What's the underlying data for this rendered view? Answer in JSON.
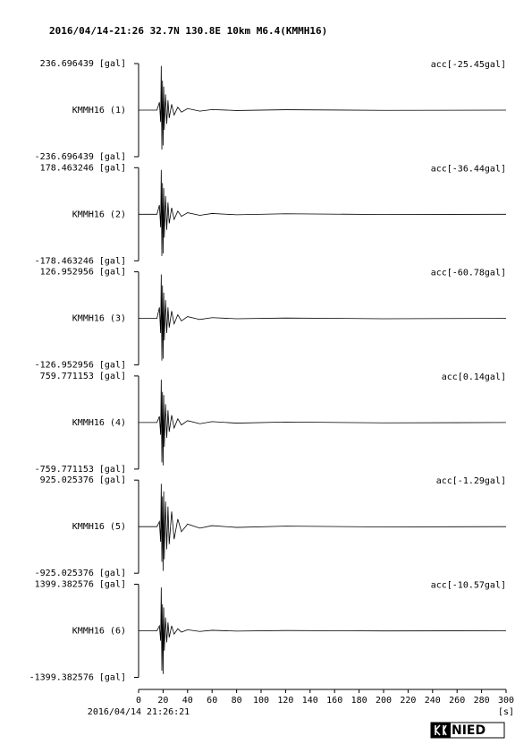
{
  "chart_data": {
    "type": "line",
    "title": "2016/04/14-21:26 32.7N 130.8E 10km M6.4(KMMH16)",
    "x": [
      0,
      15,
      17,
      18,
      18.5,
      19,
      19.5,
      20,
      20.5,
      21,
      22,
      23,
      24,
      25,
      27,
      29,
      32,
      35,
      40,
      50,
      60,
      80,
      120,
      200,
      300
    ],
    "xlim": [
      0,
      300
    ],
    "xticks": [
      0,
      20,
      40,
      60,
      80,
      100,
      120,
      140,
      160,
      180,
      200,
      220,
      240,
      260,
      280,
      300
    ],
    "xlabel": "[s]",
    "start_time": "2016/04/14 21:26:21",
    "logo": "NIED",
    "panels": [
      {
        "name": "KMMH16 (1)",
        "annotation": "acc[-25.45gal]",
        "color": "#000000",
        "ylim": [
          -236.696439,
          236.696439
        ],
        "yticks": [
          {
            "value": -236.696439,
            "label": "-236.696439 [gal]"
          },
          {
            "value": 236.696439,
            "label": "236.696439 [gal]"
          }
        ],
        "values": [
          0,
          0,
          40,
          -60,
          225,
          -200,
          150,
          -180,
          120,
          -100,
          80,
          -70,
          50,
          -40,
          30,
          -25,
          15,
          -10,
          8,
          -5,
          3,
          -2,
          2,
          -1,
          0
        ]
      },
      {
        "name": "KMMH16 (2)",
        "annotation": "acc[-36.44gal]",
        "color": "#000000",
        "ylim": [
          -178.463246,
          178.463246
        ],
        "yticks": [
          {
            "value": -178.463246,
            "label": "-178.463246 [gal]"
          },
          {
            "value": 178.463246,
            "label": "178.463246 [gal]"
          }
        ],
        "values": [
          0,
          0,
          35,
          -50,
          170,
          -160,
          120,
          -150,
          100,
          -90,
          70,
          -60,
          45,
          -35,
          25,
          -20,
          12,
          -8,
          6,
          -4,
          3,
          -2,
          2,
          -1,
          0
        ]
      },
      {
        "name": "KMMH16 (3)",
        "annotation": "acc[-60.78gal]",
        "color": "#000000",
        "ylim": [
          -126.952956,
          126.952956
        ],
        "yticks": [
          {
            "value": -126.952956,
            "label": "-126.952956 [gal]"
          },
          {
            "value": 126.952956,
            "label": "126.952956 [gal]"
          }
        ],
        "values": [
          0,
          0,
          30,
          -40,
          120,
          -115,
          90,
          -110,
          70,
          -60,
          50,
          -40,
          30,
          -25,
          20,
          -15,
          10,
          -7,
          5,
          -3,
          2,
          -1,
          1,
          -1,
          0
        ]
      },
      {
        "name": "KMMH16 (4)",
        "annotation": "acc[0.14gal]",
        "color": "#000000",
        "ylim": [
          -759.771153,
          759.771153
        ],
        "yticks": [
          {
            "value": -759.771153,
            "label": "-759.771153 [gal]"
          },
          {
            "value": 759.771153,
            "label": "759.771153 [gal]"
          }
        ],
        "values": [
          0,
          0,
          100,
          -200,
          700,
          -650,
          500,
          -700,
          450,
          -400,
          300,
          -250,
          200,
          -150,
          120,
          -90,
          60,
          -40,
          30,
          -20,
          15,
          -10,
          8,
          -5,
          0
        ]
      },
      {
        "name": "KMMH16 (5)",
        "annotation": "acc[-1.29gal]",
        "color": "#000000",
        "ylim": [
          -925.025376,
          925.025376
        ],
        "yticks": [
          {
            "value": -925.025376,
            "label": "-925.025376 [gal]"
          },
          {
            "value": 925.025376,
            "label": "925.025376 [gal]"
          }
        ],
        "values": [
          0,
          0,
          100,
          -300,
          850,
          -700,
          600,
          -880,
          700,
          -650,
          500,
          -450,
          400,
          -350,
          300,
          -250,
          150,
          -100,
          50,
          -30,
          20,
          -15,
          10,
          -5,
          0
        ]
      },
      {
        "name": "KMMH16 (6)",
        "annotation": "acc[-10.57gal]",
        "color": "#000000",
        "ylim": [
          -1399.382576,
          1399.382576
        ],
        "yticks": [
          {
            "value": -1399.382576,
            "label": "-1399.382576 [gal]"
          },
          {
            "value": 1399.382576,
            "label": "1399.382576 [gal]"
          }
        ],
        "values": [
          0,
          0,
          150,
          -300,
          1300,
          -1200,
          800,
          -1300,
          700,
          -600,
          400,
          -350,
          250,
          -200,
          150,
          -100,
          60,
          -40,
          30,
          -20,
          15,
          -10,
          8,
          -5,
          0
        ]
      }
    ]
  }
}
